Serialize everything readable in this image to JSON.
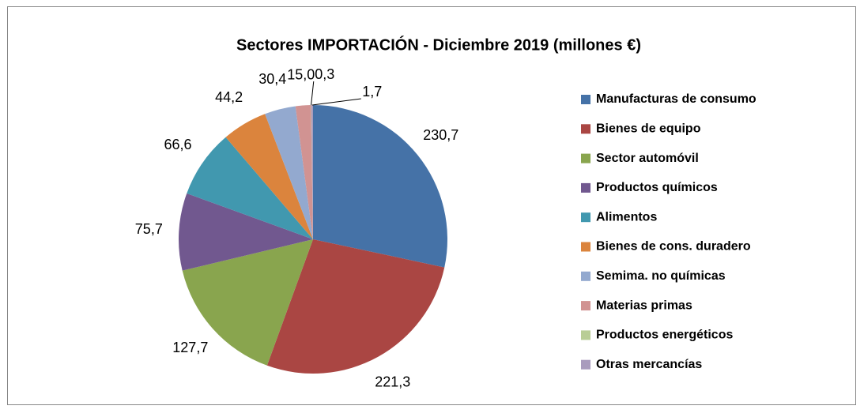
{
  "chart_data": {
    "type": "pie",
    "title": "Sectores IMPORTACIÓN - Diciembre 2019  (millones €)",
    "categories": [
      "Manufacturas de consumo",
      "Bienes de equipo",
      "Sector automóvil",
      "Productos químicos",
      "Alimentos",
      "Bienes de cons. duradero",
      "Semima. no químicas",
      "Materias primas",
      "Productos energéticos",
      "Otras mercancías"
    ],
    "values": [
      230.7,
      221.3,
      127.7,
      75.7,
      66.6,
      44.2,
      30.4,
      15.0,
      0.3,
      1.7
    ],
    "value_labels": [
      "230,7",
      "221,3",
      "127,7",
      "75,7",
      "66,6",
      "44,2",
      "30,4",
      "15,0",
      "0,3",
      "1,7"
    ],
    "colors": [
      "#4572a7",
      "#aa4643",
      "#89a54e",
      "#71588f",
      "#4198af",
      "#db843d",
      "#93a9cf",
      "#d19392",
      "#b9cd96",
      "#a99bbd"
    ],
    "legend": "right"
  }
}
